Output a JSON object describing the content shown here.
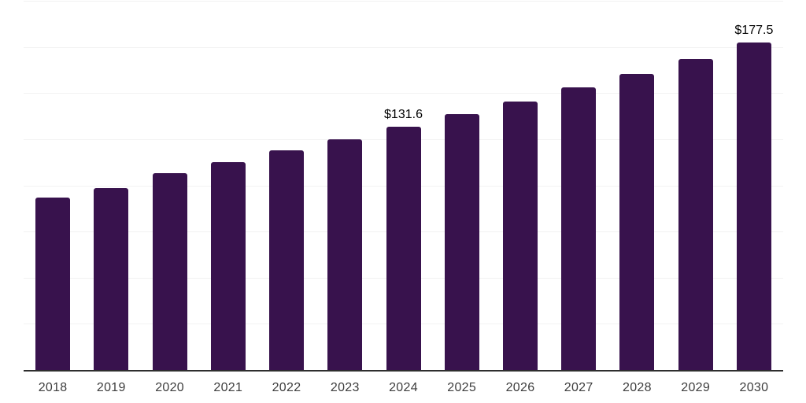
{
  "chart_data": {
    "type": "bar",
    "title": "",
    "xlabel": "",
    "ylabel": "",
    "categories": [
      "2018",
      "2019",
      "2020",
      "2021",
      "2022",
      "2023",
      "2024",
      "2025",
      "2026",
      "2027",
      "2028",
      "2029",
      "2030"
    ],
    "values": [
      93.6,
      98.4,
      106.7,
      112.8,
      119.0,
      125.1,
      131.6,
      138.6,
      145.4,
      153.1,
      160.3,
      168.4,
      177.5
    ],
    "data_labels": [
      {
        "category": "2024",
        "text": "$131.6"
      },
      {
        "category": "2030",
        "text": "$177.5"
      }
    ],
    "ylim": [
      0,
      200
    ],
    "gridline_step": 25,
    "grid": "horizontal-only",
    "legend": "none",
    "colors": {
      "bar": "#38124D",
      "gridline": "#F2F2F2",
      "axis_line": "#2E2E2E",
      "tick_label": "#3D3D3D",
      "value_label": "#000000",
      "background": "#FFFFFF"
    }
  }
}
